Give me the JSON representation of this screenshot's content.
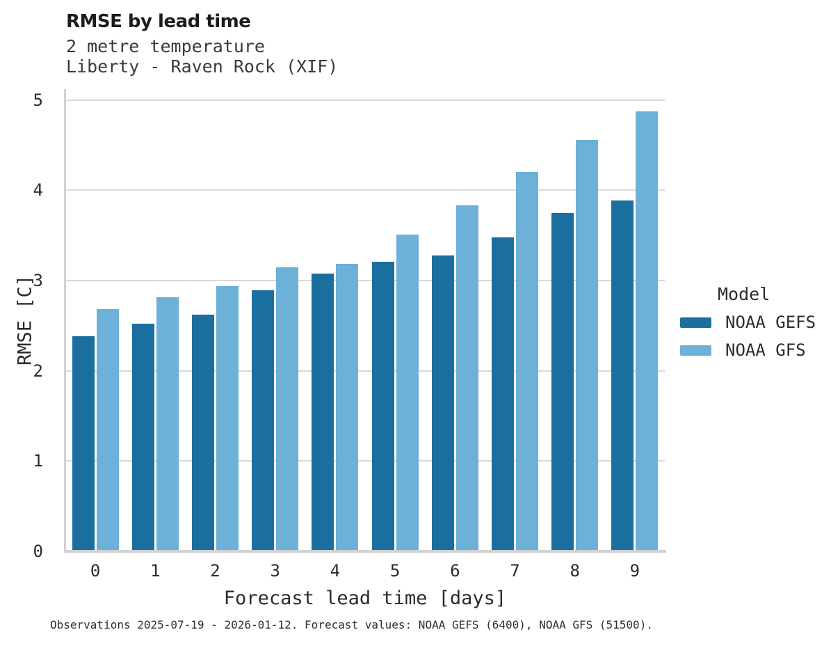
{
  "chart_data": {
    "type": "bar",
    "title": "RMSE by lead time",
    "subtitle_line1": "2 metre temperature",
    "subtitle_line2": "Liberty - Raven Rock (XIF)",
    "xlabel": "Forecast lead time [days]",
    "ylabel": "RMSE [C]",
    "categories": [
      "0",
      "1",
      "2",
      "3",
      "4",
      "5",
      "6",
      "7",
      "8",
      "9"
    ],
    "series": [
      {
        "name": "NOAA GEFS",
        "color": "#1a6f9e",
        "values": [
          2.37,
          2.51,
          2.61,
          2.88,
          3.06,
          3.19,
          3.26,
          3.46,
          3.73,
          3.87
        ]
      },
      {
        "name": "NOAA GFS",
        "color": "#6db0d8",
        "values": [
          2.67,
          2.8,
          2.92,
          3.13,
          3.17,
          3.49,
          3.82,
          4.19,
          4.54,
          4.86
        ]
      }
    ],
    "ylim": [
      0,
      5
    ],
    "yticks": [
      0,
      1,
      2,
      3,
      4,
      5
    ],
    "grid": "horizontal",
    "legend": {
      "title": "Model",
      "position": "right"
    },
    "caption": "Observations 2025-07-19 - 2026-01-12. Forecast values: NOAA GEFS (6400), NOAA GFS (51500)."
  },
  "style_colors": {
    "grid": "#d9d9d9",
    "axis": "#d2d2d2",
    "series_dark": "#1a6f9e",
    "series_light": "#6db0d8"
  }
}
